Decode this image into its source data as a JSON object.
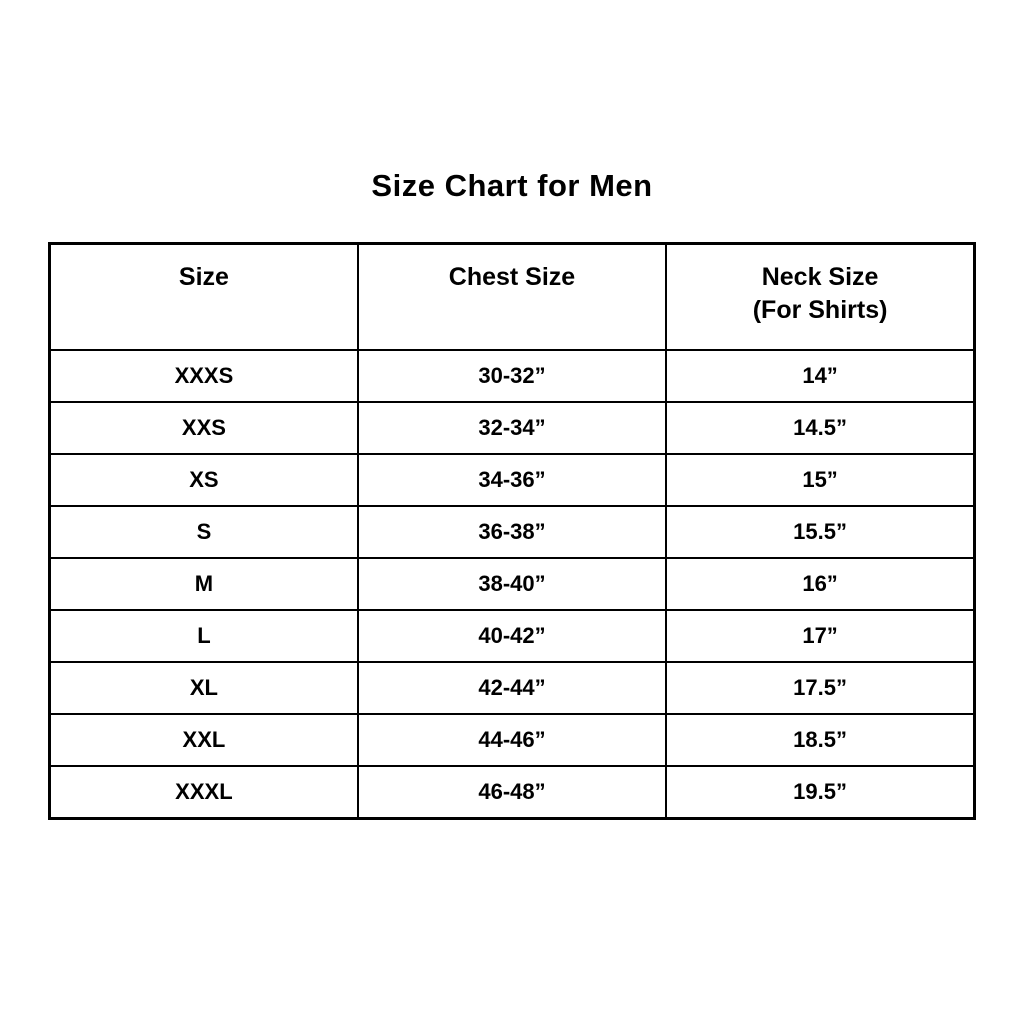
{
  "chart_data": {
    "type": "table",
    "title": "Size Chart for Men",
    "columns": [
      {
        "label": "Size",
        "sublabel": ""
      },
      {
        "label": "Chest Size",
        "sublabel": ""
      },
      {
        "label": "Neck Size",
        "sublabel": "(For Shirts)"
      }
    ],
    "rows": [
      {
        "size": "XXXS",
        "chest_size": "30-32”",
        "neck_size": "14”"
      },
      {
        "size": "XXS",
        "chest_size": "32-34”",
        "neck_size": "14.5”"
      },
      {
        "size": "XS",
        "chest_size": "34-36”",
        "neck_size": "15”"
      },
      {
        "size": "S",
        "chest_size": "36-38”",
        "neck_size": "15.5”"
      },
      {
        "size": "M",
        "chest_size": "38-40”",
        "neck_size": "16”"
      },
      {
        "size": "L",
        "chest_size": "40-42”",
        "neck_size": "17”"
      },
      {
        "size": "XL",
        "chest_size": "42-44”",
        "neck_size": "17.5”"
      },
      {
        "size": "XXL",
        "chest_size": "44-46”",
        "neck_size": "18.5”"
      },
      {
        "size": "XXXL",
        "chest_size": "46-48”",
        "neck_size": "19.5”"
      }
    ],
    "layout": {
      "background_color": "#ffffff",
      "text_color": "#000000",
      "border_color": "#000000",
      "grid": "on"
    }
  }
}
